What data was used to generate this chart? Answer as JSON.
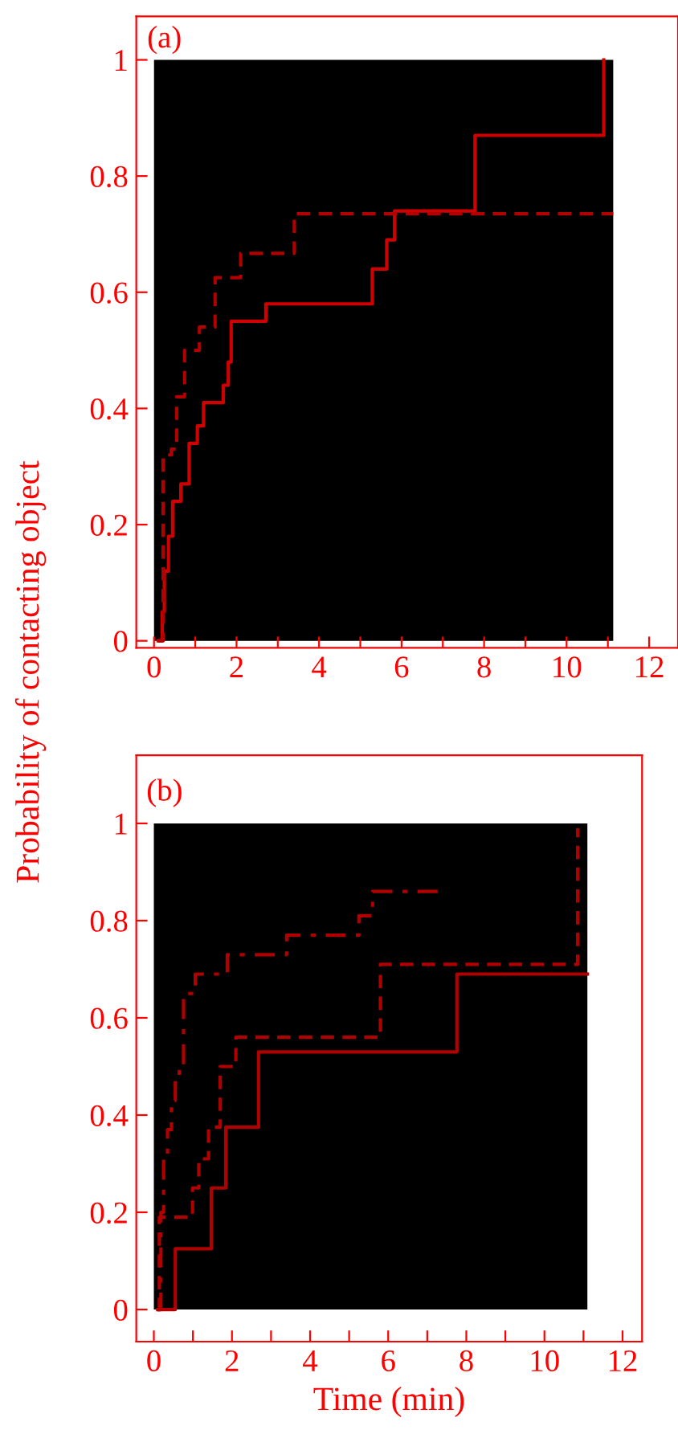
{
  "chart_data": [
    {
      "type": "step",
      "annotations": [
        "(a)"
      ],
      "xlim": [
        -0.43,
        12.7
      ],
      "ylim": [
        -0.012,
        1.075
      ],
      "xticks": [
        0,
        {
          "value": 1,
          "label": null
        },
        2,
        {
          "value": 3,
          "label": null
        },
        4,
        {
          "value": 5,
          "label": null
        },
        6,
        {
          "value": 7,
          "label": null
        },
        8,
        {
          "value": 9,
          "label": null
        },
        10,
        {
          "value": 11,
          "label": null
        },
        12
      ],
      "yticks": [
        0,
        0.2,
        0.4,
        0.6,
        0.8,
        1
      ],
      "grid": false,
      "marker": "none",
      "bands": [
        {
          "axis": "y",
          "from": 0,
          "to": 1,
          "color": "#000000"
        }
      ],
      "series": [
        {
          "color": "#d00000",
          "line_style": "solid",
          "x": [
            0.1,
            0.2,
            0.25,
            0.35,
            0.45,
            0.65,
            0.85,
            1.05,
            1.2,
            1.68,
            1.8,
            1.87,
            2.71,
            5.29,
            5.64,
            5.83,
            7.78,
            10.9
          ],
          "values": [
            0,
            0.05,
            0.12,
            0.18,
            0.24,
            0.27,
            0.34,
            0.37,
            0.41,
            0.44,
            0.48,
            0.55,
            0.58,
            0.64,
            0.69,
            0.74,
            0.87,
            1.0
          ]
        },
        {
          "color": "#b00000",
          "line_style": "dashed",
          "x": [
            0.1,
            0.22,
            0.42,
            0.55,
            0.74,
            1.1,
            1.48,
            2.1,
            3.4,
            11.13
          ],
          "values": [
            0,
            0.32,
            0.33,
            0.42,
            0.5,
            0.54,
            0.625,
            0.667,
            0.735,
            0.735
          ]
        }
      ]
    },
    {
      "type": "step",
      "annotations": [
        "(b)"
      ],
      "xlabel": "Time (min)",
      "ylabel": "Probability of contacting object",
      "xlim": [
        -0.45,
        12.5
      ],
      "ylim": [
        -0.066,
        1.14
      ],
      "xticks": [
        0,
        {
          "value": 1,
          "label": null
        },
        2,
        {
          "value": 3,
          "label": null
        },
        4,
        {
          "value": 5,
          "label": null
        },
        6,
        {
          "value": 7,
          "label": null
        },
        8,
        {
          "value": 9,
          "label": null
        },
        10,
        {
          "value": 11,
          "label": null
        },
        12
      ],
      "yticks": [
        0,
        0.2,
        0.4,
        0.6,
        0.8,
        1
      ],
      "grid": false,
      "marker": "none",
      "bands": [
        {
          "axis": "y",
          "from": 0,
          "to": 1,
          "color": "#000000"
        }
      ],
      "series": [
        {
          "color": "#b00000",
          "line_style": "solid",
          "x": [
            0.1,
            0.55,
            1.47,
            1.84,
            2.68,
            7.76,
            11.1
          ],
          "values": [
            0,
            0.125,
            0.25,
            0.375,
            0.53,
            0.69,
            0.69
          ]
        },
        {
          "color": "#b00000",
          "line_style": "dashed",
          "x": [
            0.1,
            0.14,
            0.99,
            1.15,
            1.4,
            1.7,
            2.1,
            5.8,
            10.85
          ],
          "values": [
            0,
            0.19,
            0.25,
            0.31,
            0.375,
            0.5,
            0.56,
            0.71,
            0.99
          ]
        },
        {
          "color": "#b00000",
          "line_style": "dashdot",
          "x": [
            0.1,
            0.18,
            0.25,
            0.35,
            0.45,
            0.55,
            0.65,
            0.76,
            1.06,
            1.88,
            3.4,
            5.25,
            5.6,
            7.39
          ],
          "values": [
            0,
            0.2,
            0.32,
            0.37,
            0.43,
            0.47,
            0.5,
            0.65,
            0.69,
            0.73,
            0.77,
            0.81,
            0.86,
            0.86
          ]
        }
      ]
    }
  ]
}
